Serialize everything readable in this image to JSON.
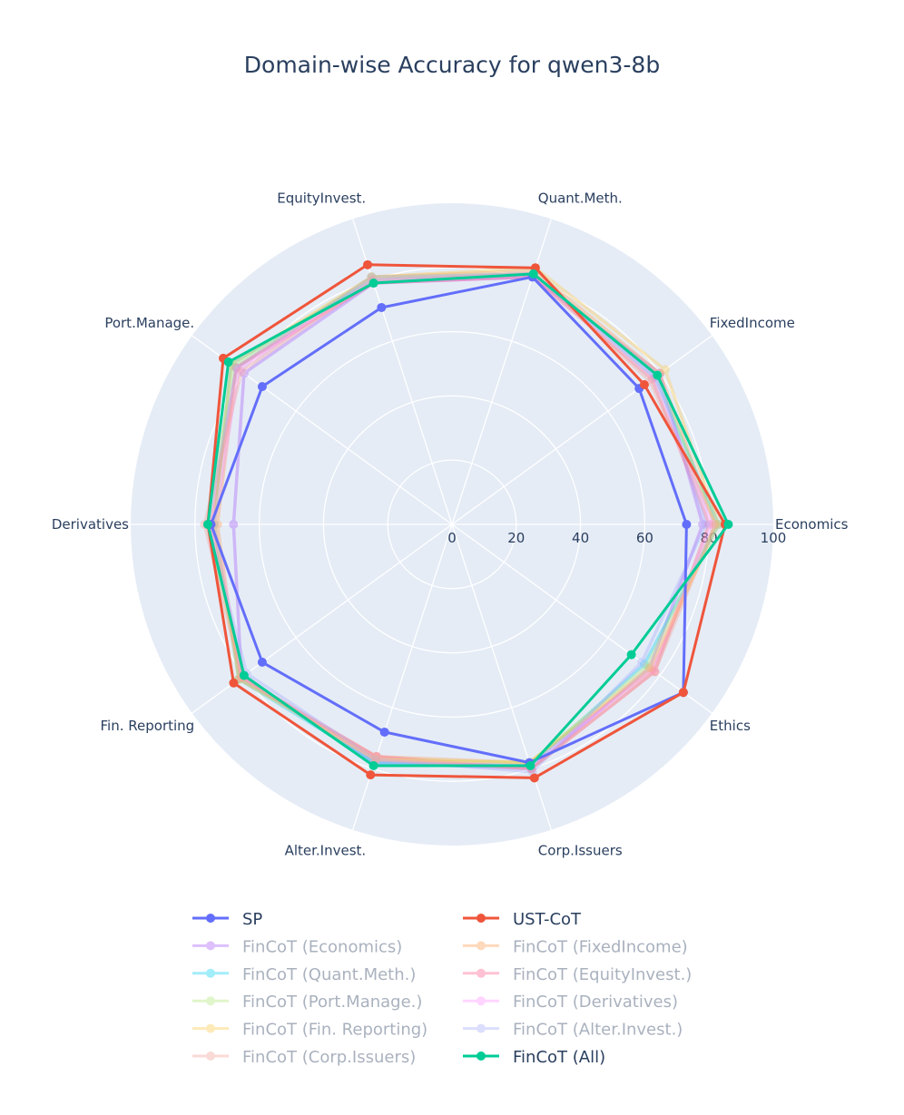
{
  "chart_data": {
    "type": "radar",
    "title": "Domain-wise Accuracy for qwen3-8b",
    "categories": [
      "Economics",
      "FixedIncome",
      "Quant.Meth.",
      "EquityInvest.",
      "Port.Manage.",
      "Derivatives",
      "Fin. Reporting",
      "Alter.Invest.",
      "Corp.Issuers",
      "Ethics"
    ],
    "radial_range": [
      0,
      100
    ],
    "radial_ticks": [
      "0",
      "20",
      "40",
      "60",
      "80",
      "100"
    ],
    "series": [
      {
        "name": "SP",
        "color": "#636efa",
        "values": [
          73,
          72,
          81,
          71,
          73,
          75,
          73,
          68,
          78,
          89
        ]
      },
      {
        "name": "UST-CoT",
        "color": "#ef553b",
        "values": [
          85,
          74,
          84,
          85,
          88,
          76,
          84,
          82,
          83,
          89
        ]
      },
      {
        "name": "FinCoT (Economics)",
        "color": "#ab63fa",
        "values": [
          78,
          80,
          81,
          79,
          80,
          68,
          81,
          78,
          80,
          76
        ]
      },
      {
        "name": "FinCoT (FixedIncome)",
        "color": "#ffa15a",
        "values": [
          82,
          80,
          83,
          81,
          83,
          73,
          82,
          76,
          78,
          77
        ]
      },
      {
        "name": "FinCoT (Quant.Meth.)",
        "color": "#19d3f3",
        "values": [
          83,
          78,
          82,
          80,
          85,
          74,
          82,
          78,
          79,
          74
        ]
      },
      {
        "name": "FinCoT (EquityInvest.)",
        "color": "#ff6692",
        "values": [
          80,
          77,
          81,
          79,
          83,
          75,
          81,
          76,
          80,
          78
        ]
      },
      {
        "name": "FinCoT (Port.Manage.)",
        "color": "#b6e880",
        "values": [
          82,
          79,
          82,
          81,
          84,
          76,
          81,
          77,
          78,
          75
        ]
      },
      {
        "name": "FinCoT (Derivatives)",
        "color": "#ff97ff",
        "values": [
          81,
          78,
          82,
          80,
          82,
          74,
          81,
          77,
          79,
          77
        ]
      },
      {
        "name": "FinCoT (Fin. Reporting)",
        "color": "#fecb52",
        "values": [
          83,
          82,
          84,
          81,
          85,
          74,
          82,
          77,
          78,
          76
        ]
      },
      {
        "name": "FinCoT (Alter.Invest.)",
        "color": "#a9aefc",
        "values": [
          79,
          79,
          82,
          81,
          83,
          76,
          79,
          77,
          81,
          73
        ]
      },
      {
        "name": "FinCoT (Corp.Issuers)",
        "color": "#f5a49a",
        "values": [
          82,
          76,
          82,
          80,
          81,
          77,
          81,
          77,
          80,
          78
        ]
      },
      {
        "name": "FinCoT (All)",
        "color": "#00cc96",
        "values": [
          86,
          79,
          82,
          79,
          86,
          76,
          80,
          79,
          79,
          69
        ]
      }
    ],
    "legend_order": [
      "SP",
      "UST-CoT",
      "FinCoT (Economics)",
      "FinCoT (FixedIncome)",
      "FinCoT (Quant.Meth.)",
      "FinCoT (EquityInvest.)",
      "FinCoT (Port.Manage.)",
      "FinCoT (Derivatives)",
      "FinCoT (Fin. Reporting)",
      "FinCoT (Alter.Invest.)",
      "FinCoT (Corp.Issuers)",
      "FinCoT (All)"
    ],
    "grid": true,
    "legend_position": "bottom"
  }
}
